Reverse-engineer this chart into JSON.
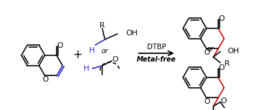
{
  "background_color": "#ffffff",
  "bond_color": "#000000",
  "blue_color": "#2222cc",
  "red_color": "#cc0000",
  "text_dtbp": "DTBP",
  "text_metalfree": "Metal-free",
  "text_or": "or",
  "text_plus": "+",
  "text_R": "R",
  "text_H": "H",
  "text_OH": "OH",
  "text_O": "O",
  "figsize": [
    3.78,
    1.59
  ],
  "dpi": 100
}
